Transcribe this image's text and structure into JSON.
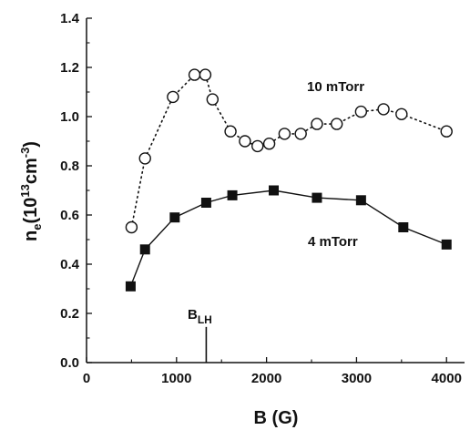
{
  "chart_data": {
    "type": "line",
    "title": "",
    "xlabel": "B (G)",
    "ylabel": {
      "base": "n",
      "base_sub": "e",
      "open": "(10",
      "exp": "13",
      "unit": "cm",
      "unit_exp": "-3",
      "close": ")"
    },
    "xlim": [
      0,
      4200
    ],
    "ylim": [
      0,
      1.4
    ],
    "xticks": [
      0,
      1000,
      2000,
      3000,
      4000
    ],
    "xtick_labels": [
      "0",
      "1000",
      "2000",
      "3000",
      "4000"
    ],
    "yticks": [
      0,
      0.2,
      0.4,
      0.6,
      0.8,
      1.0,
      1.2,
      1.4
    ],
    "ytick_labels": [
      "0.0",
      "0.2",
      "0.4",
      "0.6",
      "0.8",
      "1.0",
      "1.2",
      "1.4"
    ],
    "grid": false,
    "series": [
      {
        "name": "10 mTorr",
        "marker": "open-circle",
        "line": "dotted",
        "x": [
          500,
          650,
          960,
          1200,
          1320,
          1400,
          1600,
          1760,
          1900,
          2030,
          2200,
          2380,
          2560,
          2780,
          3050,
          3300,
          3500,
          4000
        ],
        "y": [
          0.55,
          0.83,
          1.08,
          1.17,
          1.17,
          1.07,
          0.94,
          0.9,
          0.88,
          0.89,
          0.93,
          0.93,
          0.97,
          0.97,
          1.02,
          1.03,
          1.01,
          0.94
        ]
      },
      {
        "name": "4 mTorr",
        "marker": "filled-square",
        "line": "solid",
        "x": [
          490,
          650,
          980,
          1330,
          1620,
          2080,
          2560,
          3050,
          3520,
          4000
        ],
        "y": [
          0.31,
          0.46,
          0.59,
          0.65,
          0.68,
          0.7,
          0.67,
          0.66,
          0.55,
          0.48
        ]
      }
    ],
    "annotations": [
      {
        "base": "B",
        "sub": "LH",
        "x": 1330,
        "y_top": 0.145,
        "y_bottom": 0
      }
    ]
  }
}
